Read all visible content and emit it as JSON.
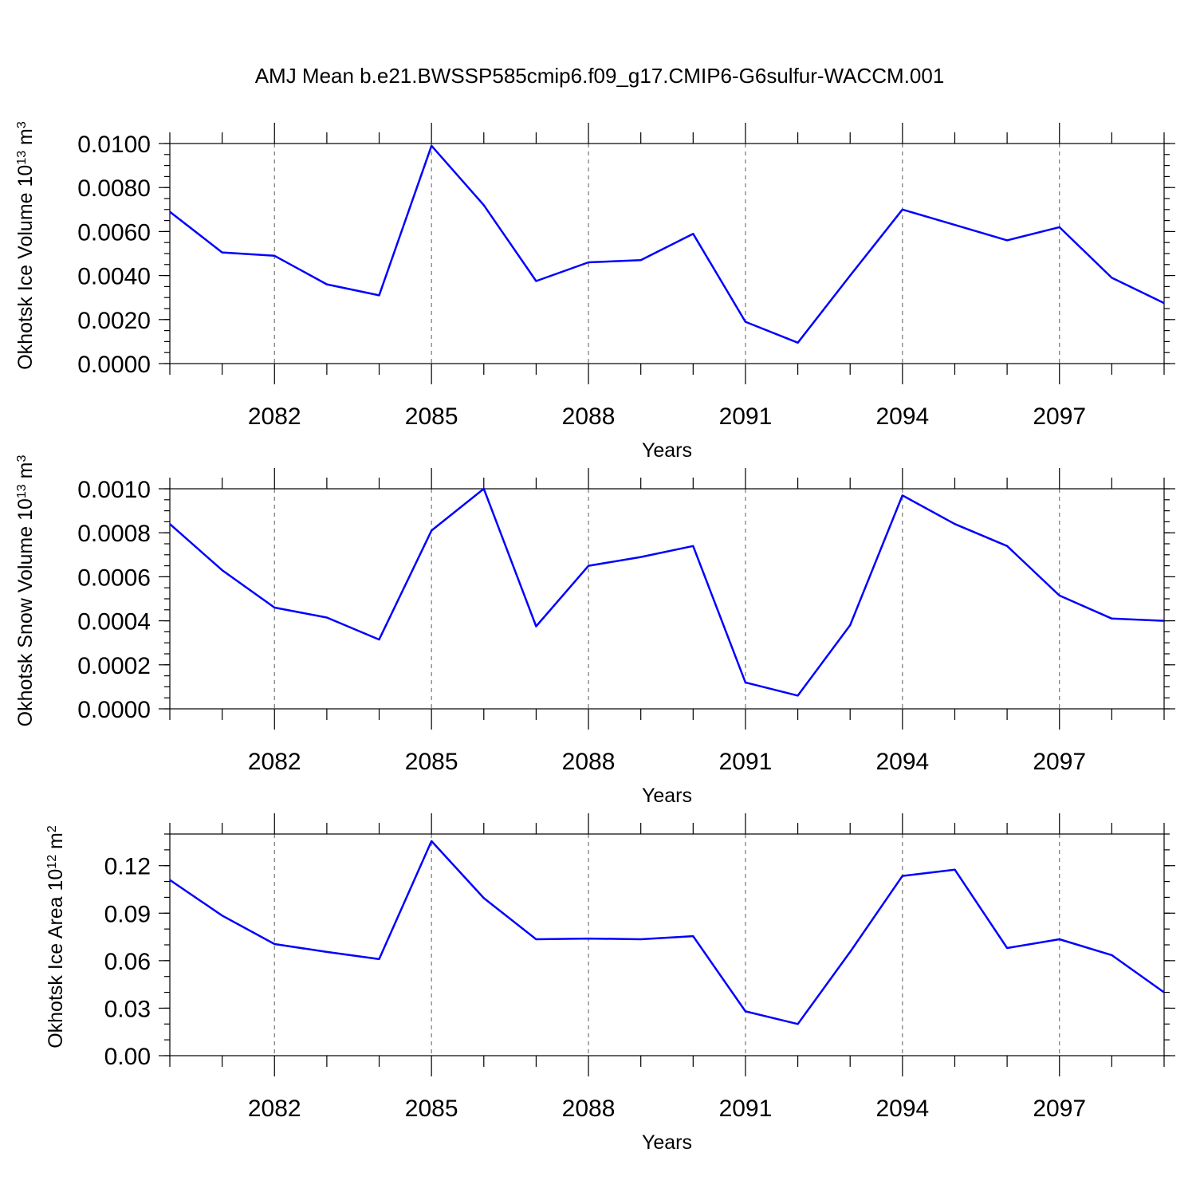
{
  "title": "AMJ Mean b.e21.BWSSP585cmip6.f09_g17.CMIP6-G6sulfur-WACCM.001",
  "chart_data": [
    {
      "type": "line",
      "ylabel": "Okhotsk Ice Volume 10",
      "ylabel_sup": "13",
      "ylabel_unit": " m",
      "ylabel_unit_sup": "3",
      "xlabel": "Years",
      "xlim": [
        2080,
        2099
      ],
      "ylim": [
        0,
        0.01
      ],
      "x_ticks": [
        2082,
        2085,
        2088,
        2091,
        2094,
        2097
      ],
      "x_tick_labels": [
        "2082",
        "2085",
        "2088",
        "2091",
        "2094",
        "2097"
      ],
      "y_ticks": [
        0,
        0.002,
        0.004,
        0.006,
        0.008,
        0.01
      ],
      "y_tick_labels": [
        "0.0000",
        "0.0020",
        "0.0040",
        "0.0060",
        "0.0080",
        "0.0100"
      ],
      "y_minor_step": 0.0005,
      "grid": "vertical dashed at major x ticks",
      "color": "#0000ff",
      "x": [
        2080,
        2081,
        2082,
        2083,
        2084,
        2085,
        2086,
        2087,
        2088,
        2089,
        2090,
        2091,
        2092,
        2093,
        2094,
        2095,
        2096,
        2097,
        2098,
        2099
      ],
      "values": [
        0.0069,
        0.00505,
        0.0049,
        0.0036,
        0.0031,
        0.0099,
        0.0072,
        0.00375,
        0.0046,
        0.0047,
        0.0059,
        0.0019,
        0.00095,
        0.004,
        0.007,
        0.0063,
        0.0056,
        0.0062,
        0.0039,
        0.00275
      ]
    },
    {
      "type": "line",
      "ylabel": "Okhotsk Snow Volume 10",
      "ylabel_sup": "13",
      "ylabel_unit": " m",
      "ylabel_unit_sup": "3",
      "xlabel": "Years",
      "xlim": [
        2080,
        2099
      ],
      "ylim": [
        0,
        0.001
      ],
      "x_ticks": [
        2082,
        2085,
        2088,
        2091,
        2094,
        2097
      ],
      "x_tick_labels": [
        "2082",
        "2085",
        "2088",
        "2091",
        "2094",
        "2097"
      ],
      "y_ticks": [
        0,
        0.0002,
        0.0004,
        0.0006,
        0.0008,
        0.001
      ],
      "y_tick_labels": [
        "0.0000",
        "0.0002",
        "0.0004",
        "0.0006",
        "0.0008",
        "0.0010"
      ],
      "y_minor_step": 5e-05,
      "grid": "vertical dashed at major x ticks",
      "color": "#0000ff",
      "x": [
        2080,
        2081,
        2082,
        2083,
        2084,
        2085,
        2086,
        2087,
        2088,
        2089,
        2090,
        2091,
        2092,
        2093,
        2094,
        2095,
        2096,
        2097,
        2098,
        2099
      ],
      "values": [
        0.00084,
        0.00063,
        0.00046,
        0.000415,
        0.000315,
        0.00081,
        0.001,
        0.000375,
        0.00065,
        0.00069,
        0.00074,
        0.00012,
        6e-05,
        0.00038,
        0.00097,
        0.00084,
        0.00074,
        0.000515,
        0.00041,
        0.0004
      ]
    },
    {
      "type": "line",
      "ylabel": "Okhotsk Ice Area 10",
      "ylabel_sup": "12",
      "ylabel_unit": " m",
      "ylabel_unit_sup": "2",
      "xlabel": "Years",
      "xlim": [
        2080,
        2099
      ],
      "ylim": [
        0,
        0.14
      ],
      "x_ticks": [
        2082,
        2085,
        2088,
        2091,
        2094,
        2097
      ],
      "x_tick_labels": [
        "2082",
        "2085",
        "2088",
        "2091",
        "2094",
        "2097"
      ],
      "y_ticks": [
        0,
        0.03,
        0.06,
        0.09,
        0.12
      ],
      "y_tick_labels": [
        "0.00",
        "0.03",
        "0.06",
        "0.09",
        "0.12"
      ],
      "y_minor_step": 0.01,
      "grid": "vertical dashed at major x ticks",
      "color": "#0000ff",
      "x": [
        2080,
        2081,
        2082,
        2083,
        2084,
        2085,
        2086,
        2087,
        2088,
        2089,
        2090,
        2091,
        2092,
        2093,
        2094,
        2095,
        2096,
        2097,
        2098,
        2099
      ],
      "values": [
        0.111,
        0.0885,
        0.0705,
        0.0655,
        0.061,
        0.1355,
        0.0995,
        0.0735,
        0.074,
        0.0735,
        0.0755,
        0.028,
        0.02,
        0.0655,
        0.1135,
        0.1175,
        0.068,
        0.0735,
        0.0635,
        0.04
      ]
    }
  ]
}
